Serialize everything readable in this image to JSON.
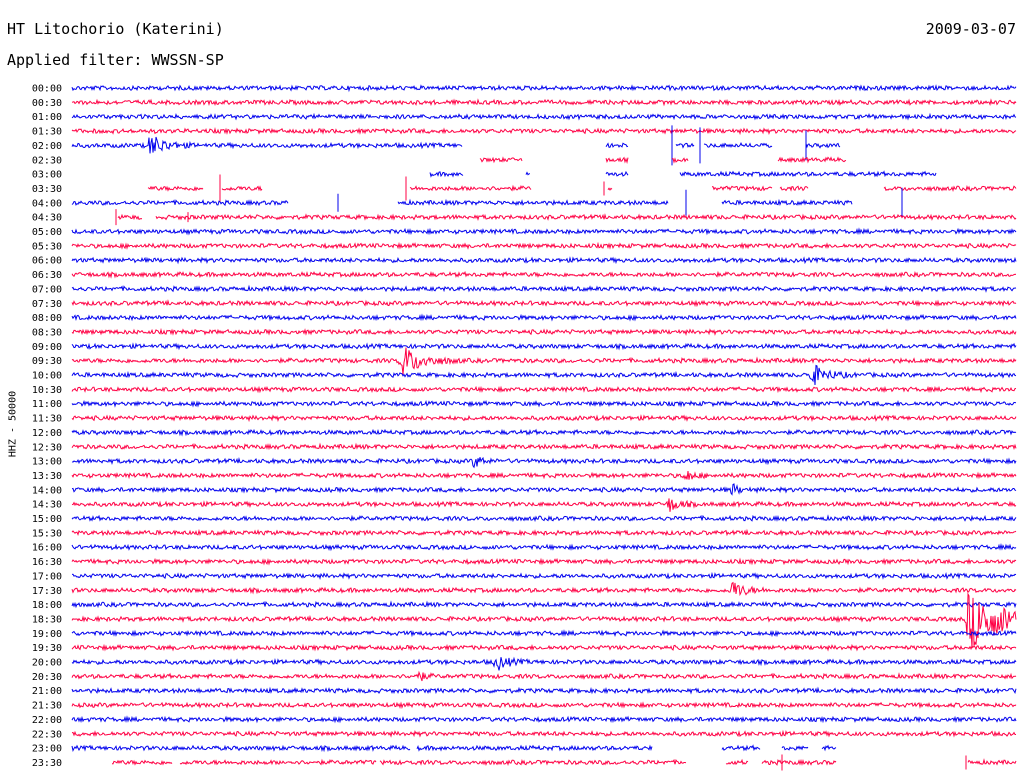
{
  "header": {
    "station": "HT Litochorio (Katerini)",
    "date": "2009-03-07",
    "filter": "Applied filter: WWSSN-SP"
  },
  "colors": {
    "blue": "#0000ee",
    "red": "#ff0044"
  },
  "chart_data": {
    "type": "line",
    "ylabel": "HHZ - 50000",
    "row_labels": [
      "00:00",
      "00:30",
      "01:00",
      "01:30",
      "02:00",
      "02:30",
      "03:00",
      "03:30",
      "04:00",
      "04:30",
      "05:00",
      "05:30",
      "06:00",
      "06:30",
      "07:00",
      "07:30",
      "08:00",
      "08:30",
      "09:00",
      "09:30",
      "10:00",
      "10:30",
      "11:00",
      "11:30",
      "12:00",
      "12:30",
      "13:00",
      "13:30",
      "14:00",
      "14:30",
      "15:00",
      "15:30",
      "16:00",
      "16:30",
      "17:00",
      "17:30",
      "18:00",
      "18:30",
      "19:00",
      "19:30",
      "20:00",
      "20:30",
      "21:00",
      "21:30",
      "22:00",
      "22:30",
      "23:00",
      "23:30"
    ],
    "row_colors": [
      "blue",
      "red"
    ],
    "events": [
      {
        "row": "02:00",
        "minute": 2.5,
        "amplitude": 11
      },
      {
        "row": "09:30",
        "minute": 10.5,
        "amplitude": 15
      },
      {
        "row": "10:00",
        "minute": 23.5,
        "amplitude": 11
      },
      {
        "row": "13:00",
        "minute": 12.8,
        "amplitude": 6
      },
      {
        "row": "13:30",
        "minute": 19.5,
        "amplitude": 6
      },
      {
        "row": "14:00",
        "minute": 21.0,
        "amplitude": 5
      },
      {
        "row": "14:30",
        "minute": 19.0,
        "amplitude": 7
      },
      {
        "row": "17:30",
        "minute": 21.0,
        "amplitude": 9
      },
      {
        "row": "18:30",
        "minute": 28.5,
        "amplitude": 30
      },
      {
        "row": "20:00",
        "minute": 13.5,
        "amplitude": 8
      },
      {
        "row": "20:30",
        "minute": 11.0,
        "amplitude": 5
      }
    ],
    "gap_rows": [
      "02:30",
      "03:00",
      "03:30",
      "04:00",
      "04:30",
      "23:00",
      "23:30"
    ]
  }
}
